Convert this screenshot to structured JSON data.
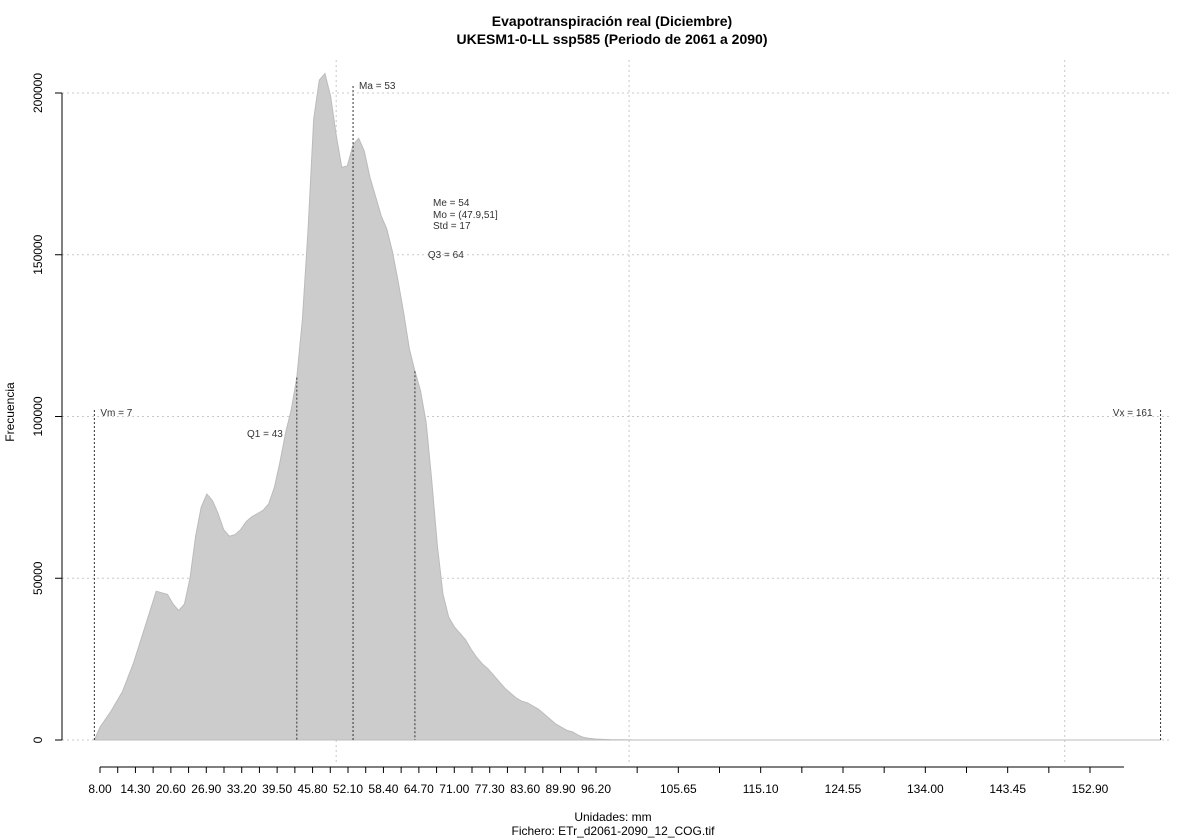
{
  "chart_data": {
    "type": "area",
    "title": "Evapotranspiración real (Diciembre)",
    "subtitle": "UKESM1-0-LL ssp585 (Periodo de 2061 a 2090)",
    "xlabel": "Unidades: mm",
    "ylabel": "Frecuencia",
    "footer": "Fichero: ETr_d2061-2090_12_COG.tif",
    "ylim": [
      0,
      205000
    ],
    "y_ticks": [
      "0",
      "50000",
      "100000",
      "150000",
      "200000"
    ],
    "x_ticks": [
      "8.00",
      "14.30",
      "20.60",
      "26.90",
      "33.20",
      "39.50",
      "45.80",
      "52.10",
      "58.40",
      "64.70",
      "71.00",
      "77.30",
      "83.60",
      "89.90",
      "96.20",
      "105.65",
      "115.10",
      "124.55",
      "134.00",
      "143.45",
      "152.90"
    ],
    "x_tick_values": [
      8.0,
      14.3,
      20.6,
      26.9,
      33.2,
      39.5,
      45.8,
      52.1,
      58.4,
      64.7,
      71.0,
      77.3,
      83.6,
      89.9,
      96.2,
      105.65,
      115.1,
      124.55,
      134.0,
      143.45,
      152.9
    ],
    "fill_color": "#cccccc",
    "grid": true,
    "density": {
      "x": [
        7,
        8,
        10,
        12,
        14,
        16,
        18,
        20,
        21,
        22,
        23,
        24,
        25,
        26,
        27,
        28,
        29,
        30,
        31,
        32,
        33,
        34,
        35,
        36,
        37,
        38,
        39,
        40,
        41,
        42,
        43,
        44,
        45,
        46,
        47,
        48,
        49,
        50,
        51,
        52,
        53,
        54,
        55,
        56,
        57,
        58,
        59,
        60,
        61,
        62,
        63,
        64,
        65,
        66,
        67,
        68,
        69,
        70,
        71,
        72,
        73,
        74,
        75,
        76,
        77,
        78,
        79,
        80,
        81,
        82,
        83,
        84,
        85,
        86,
        87,
        88,
        89,
        90,
        91,
        92,
        93,
        94,
        95,
        96,
        97,
        98,
        99,
        100,
        101,
        103,
        105,
        108,
        110,
        115,
        120,
        130,
        140,
        150,
        161
      ],
      "y": [
        0,
        4000,
        9000,
        15000,
        24000,
        35000,
        46000,
        45000,
        42000,
        40000,
        42000,
        50000,
        63000,
        72000,
        76000,
        74000,
        70000,
        65000,
        63000,
        63500,
        65000,
        67500,
        69000,
        70000,
        71000,
        73000,
        78000,
        86000,
        95000,
        102000,
        112000,
        130000,
        158000,
        192000,
        204000,
        206000,
        199000,
        187000,
        177000,
        177500,
        184000,
        186000,
        182000,
        174000,
        168000,
        162000,
        158000,
        151000,
        142000,
        132000,
        121000,
        114000,
        108000,
        98000,
        80000,
        60000,
        45000,
        38000,
        35000,
        33000,
        31000,
        28000,
        25500,
        23500,
        22000,
        20000,
        18000,
        16000,
        14500,
        13000,
        12000,
        11500,
        10500,
        9500,
        8000,
        6500,
        5000,
        4000,
        3000,
        2500,
        1500,
        800,
        500,
        300,
        200,
        100,
        50,
        20,
        10,
        0,
        0,
        0,
        0,
        0,
        0,
        0,
        0,
        0,
        0
      ]
    },
    "annotations": {
      "vm": {
        "label": "Vm = 7",
        "x": 7
      },
      "q1": {
        "label": "Q1 = 43",
        "x": 43
      },
      "ma": {
        "label": "Ma = 53",
        "x": 53
      },
      "me": {
        "label": "Me = 54"
      },
      "mo": {
        "label": "Mo = (47.9,51]"
      },
      "std": {
        "label": "Std = 17"
      },
      "q3": {
        "label": "Q3 = 64",
        "x": 64
      },
      "vx": {
        "label": "Vx = 161",
        "x": 161
      }
    },
    "vertical_gridlines_x": [
      50,
      100,
      150
    ]
  }
}
